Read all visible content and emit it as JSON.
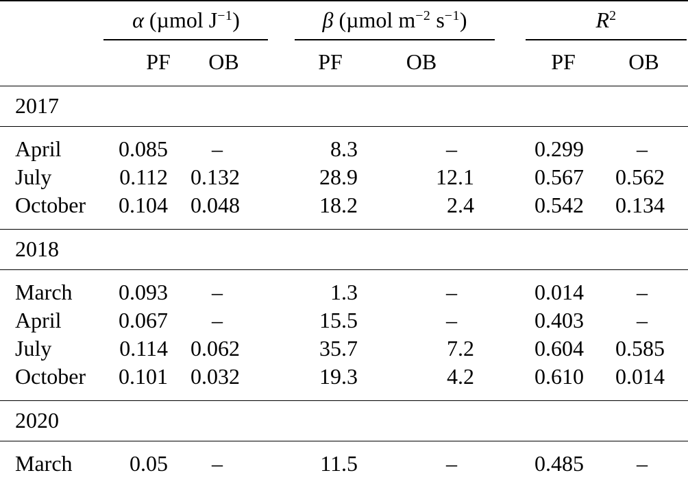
{
  "table": {
    "col_groups": [
      {
        "sym": "α",
        "pre": " (µmol J",
        "sup1": "−1",
        "mid": "",
        "sup2": "",
        "post": ")"
      },
      {
        "sym": "β",
        "pre": " (µmol m",
        "sup1": "−2",
        "mid": " s",
        "sup2": "−1",
        "post": ")"
      },
      {
        "sym": "R",
        "pre": "",
        "sup1": "2",
        "mid": "",
        "sup2": "",
        "post": ""
      }
    ],
    "sub_headers": [
      "PF",
      "OB",
      "PF",
      "OB",
      "PF",
      "OB"
    ],
    "missing_value_mark": "–",
    "sections": [
      {
        "year": "2017",
        "rows": [
          {
            "month": "April",
            "a_pf": "0.085",
            "a_ob": "–",
            "b_pf": "8.3",
            "b_ob": "–",
            "r_pf": "0.299",
            "r_ob": "–"
          },
          {
            "month": "July",
            "a_pf": "0.112",
            "a_ob": "0.132",
            "b_pf": "28.9",
            "b_ob": "12.1",
            "r_pf": "0.567",
            "r_ob": "0.562"
          },
          {
            "month": "October",
            "a_pf": "0.104",
            "a_ob": "0.048",
            "b_pf": "18.2",
            "b_ob": "2.4",
            "r_pf": "0.542",
            "r_ob": "0.134"
          }
        ]
      },
      {
        "year": "2018",
        "rows": [
          {
            "month": "March",
            "a_pf": "0.093",
            "a_ob": "–",
            "b_pf": "1.3",
            "b_ob": "–",
            "r_pf": "0.014",
            "r_ob": "–"
          },
          {
            "month": "April",
            "a_pf": "0.067",
            "a_ob": "–",
            "b_pf": "15.5",
            "b_ob": "–",
            "r_pf": "0.403",
            "r_ob": "–"
          },
          {
            "month": "July",
            "a_pf": "0.114",
            "a_ob": "0.062",
            "b_pf": "35.7",
            "b_ob": "7.2",
            "r_pf": "0.604",
            "r_ob": "0.585"
          },
          {
            "month": "October",
            "a_pf": "0.101",
            "a_ob": "0.032",
            "b_pf": "19.3",
            "b_ob": "4.2",
            "r_pf": "0.610",
            "r_ob": "0.014"
          }
        ]
      },
      {
        "year": "2020",
        "rows": [
          {
            "month": "March",
            "a_pf": "0.05",
            "a_ob": "–",
            "b_pf": "11.5",
            "b_ob": "–",
            "r_pf": "0.485",
            "r_ob": "–"
          }
        ]
      }
    ]
  }
}
